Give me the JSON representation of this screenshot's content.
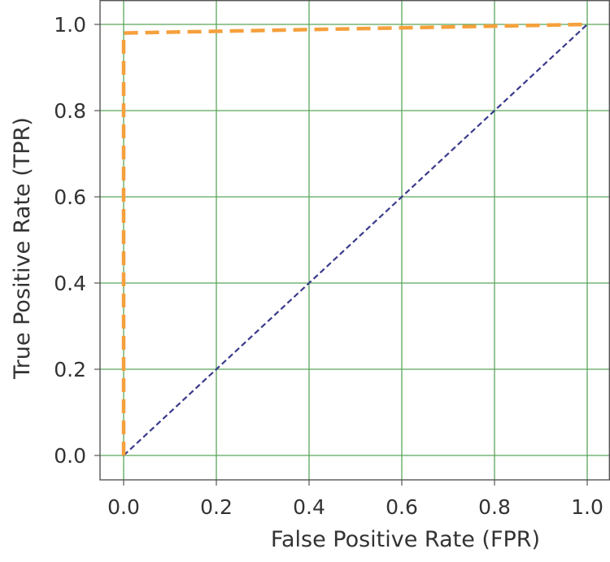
{
  "chart_data": {
    "type": "line",
    "title": "",
    "xlabel": "False Positive Rate (FPR)",
    "ylabel": "True Positive Rate (TPR)",
    "xlim": [
      0.0,
      1.0
    ],
    "ylim": [
      0.0,
      1.0
    ],
    "xticks": [
      "0.0",
      "0.2",
      "0.4",
      "0.6",
      "0.8",
      "1.0"
    ],
    "yticks": [
      "0.0",
      "0.2",
      "0.4",
      "0.6",
      "0.8",
      "1.0"
    ],
    "grid": true,
    "legend": "none",
    "series": [
      {
        "style": "dashed",
        "color": "#f5a03c",
        "x": [
          0.0,
          0.0,
          1.0
        ],
        "y": [
          0.0,
          0.98,
          1.0
        ]
      },
      {
        "style": "dashed",
        "color": "#3a3a8c",
        "x": [
          0.0,
          1.0
        ],
        "y": [
          0.0,
          1.0
        ]
      }
    ],
    "colors": {
      "grid": "#5aa65a",
      "axes": "#555555"
    }
  }
}
